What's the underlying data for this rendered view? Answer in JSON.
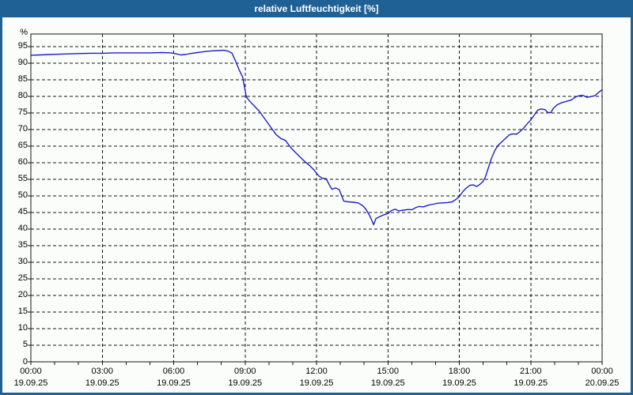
{
  "window": {
    "title": "relative Luftfeuchtigkeit [%]"
  },
  "colors": {
    "titlebar": "#1f6195",
    "frame": "#1f6195",
    "background": "#fbfdfb",
    "grid": "#141414",
    "line": "#1f1fc8",
    "title_text": "#ffffff",
    "label_text": "#000000"
  },
  "chart_data": {
    "type": "line",
    "title": "relative Luftfeuchtigkeit [%]",
    "xlabel": "",
    "ylabel": "%",
    "ylim": [
      0,
      98.8
    ],
    "xlim_hours": [
      0,
      24
    ],
    "grid": "dashed",
    "legend": "none",
    "y_ticks": [
      0,
      5,
      10,
      15,
      20,
      25,
      30,
      35,
      40,
      45,
      50,
      55,
      60,
      65,
      70,
      75,
      80,
      85,
      90,
      95
    ],
    "x_grid_hours": [
      3,
      6,
      9,
      12,
      15,
      18,
      21
    ],
    "x_minor_tick_hours": 1,
    "x_major_ticks": [
      {
        "hour": 0,
        "time": "00:00",
        "date": "19.09.25"
      },
      {
        "hour": 3,
        "time": "03:00",
        "date": "19.09.25"
      },
      {
        "hour": 6,
        "time": "06:00",
        "date": "19.09.25"
      },
      {
        "hour": 9,
        "time": "09:00",
        "date": "19.09.25"
      },
      {
        "hour": 12,
        "time": "12:00",
        "date": "19.09.25"
      },
      {
        "hour": 15,
        "time": "15:00",
        "date": "19.09.25"
      },
      {
        "hour": 18,
        "time": "18:00",
        "date": "19.09.25"
      },
      {
        "hour": 21,
        "time": "21:00",
        "date": "19.09.25"
      },
      {
        "hour": 24,
        "time": "00:00",
        "date": "20.09.25"
      }
    ],
    "series": [
      {
        "name": "relative Luftfeuchtigkeit",
        "unit": "%",
        "color": "#1f1fc8",
        "points": [
          [
            0,
            92.4
          ],
          [
            0.4,
            92.5
          ],
          [
            0.8,
            92.6
          ],
          [
            1.2,
            92.7
          ],
          [
            1.6,
            92.8
          ],
          [
            2,
            92.9
          ],
          [
            2.5,
            93
          ],
          [
            3,
            93
          ],
          [
            3.5,
            93.1
          ],
          [
            4,
            93.1
          ],
          [
            4.5,
            93.1
          ],
          [
            5,
            93.1
          ],
          [
            5.5,
            93.2
          ],
          [
            5.9,
            93.1
          ],
          [
            6.1,
            92.8
          ],
          [
            6.3,
            92.5
          ],
          [
            6.5,
            92.6
          ],
          [
            6.7,
            92.9
          ],
          [
            7,
            93.2
          ],
          [
            7.3,
            93.5
          ],
          [
            7.6,
            93.7
          ],
          [
            7.9,
            93.8
          ],
          [
            8.1,
            93.9
          ],
          [
            8.3,
            93.6
          ],
          [
            8.45,
            93
          ],
          [
            8.6,
            90.6
          ],
          [
            8.75,
            88
          ],
          [
            8.9,
            85.8
          ],
          [
            9.05,
            79.8
          ],
          [
            9.2,
            78.5
          ],
          [
            9.4,
            77
          ],
          [
            9.6,
            75.5
          ],
          [
            9.7,
            74.5
          ],
          [
            9.9,
            72.5
          ],
          [
            10.1,
            70.5
          ],
          [
            10.3,
            68.5
          ],
          [
            10.5,
            67.3
          ],
          [
            10.7,
            66.7
          ],
          [
            10.9,
            64.7
          ],
          [
            11.1,
            63.2
          ],
          [
            11.3,
            61.8
          ],
          [
            11.5,
            60.4
          ],
          [
            11.7,
            59.2
          ],
          [
            11.9,
            57.8
          ],
          [
            12,
            56.8
          ],
          [
            12.1,
            56
          ],
          [
            12.25,
            55.3
          ],
          [
            12.4,
            55.2
          ],
          [
            12.55,
            53.2
          ],
          [
            12.65,
            52
          ],
          [
            12.8,
            52.4
          ],
          [
            12.95,
            51.9
          ],
          [
            13.05,
            50.2
          ],
          [
            13.15,
            48.4
          ],
          [
            13.35,
            48.2
          ],
          [
            13.55,
            48.1
          ],
          [
            13.75,
            47.9
          ],
          [
            13.95,
            47
          ],
          [
            14.1,
            45.7
          ],
          [
            14.25,
            43.8
          ],
          [
            14.4,
            41.3
          ],
          [
            14.5,
            43.2
          ],
          [
            14.65,
            43.7
          ],
          [
            14.8,
            44.2
          ],
          [
            15,
            44.7
          ],
          [
            15.15,
            45.6
          ],
          [
            15.3,
            46
          ],
          [
            15.45,
            45.5
          ],
          [
            15.65,
            45.7
          ],
          [
            15.85,
            45.9
          ],
          [
            16,
            45.8
          ],
          [
            16.15,
            46.4
          ],
          [
            16.3,
            46.8
          ],
          [
            16.5,
            46.7
          ],
          [
            16.7,
            47.2
          ],
          [
            16.9,
            47.5
          ],
          [
            17.1,
            47.8
          ],
          [
            17.3,
            47.9
          ],
          [
            17.5,
            48
          ],
          [
            17.7,
            48.2
          ],
          [
            17.85,
            48.9
          ],
          [
            18,
            49.8
          ],
          [
            18.15,
            51.3
          ],
          [
            18.3,
            52.4
          ],
          [
            18.45,
            53.2
          ],
          [
            18.6,
            53.3
          ],
          [
            18.72,
            52.8
          ],
          [
            18.85,
            53.4
          ],
          [
            19,
            54.4
          ],
          [
            19.1,
            55.8
          ],
          [
            19.2,
            58
          ],
          [
            19.35,
            61.3
          ],
          [
            19.5,
            63.8
          ],
          [
            19.65,
            65.4
          ],
          [
            19.8,
            66.4
          ],
          [
            19.95,
            67.4
          ],
          [
            20.1,
            68.4
          ],
          [
            20.25,
            68.7
          ],
          [
            20.4,
            68.6
          ],
          [
            20.55,
            69.4
          ],
          [
            20.7,
            70.4
          ],
          [
            20.85,
            71.7
          ],
          [
            21,
            72.9
          ],
          [
            21.15,
            74.4
          ],
          [
            21.3,
            75.9
          ],
          [
            21.45,
            76.2
          ],
          [
            21.6,
            76
          ],
          [
            21.72,
            75.1
          ],
          [
            21.85,
            75.1
          ],
          [
            21.95,
            76.4
          ],
          [
            22.1,
            77.4
          ],
          [
            22.3,
            78.1
          ],
          [
            22.5,
            78.5
          ],
          [
            22.7,
            78.9
          ],
          [
            22.9,
            79.9
          ],
          [
            23.05,
            80.2
          ],
          [
            23.2,
            80.3
          ],
          [
            23.35,
            79.7
          ],
          [
            23.5,
            79.9
          ],
          [
            23.7,
            80.2
          ],
          [
            23.85,
            81.2
          ],
          [
            24,
            82
          ]
        ]
      }
    ]
  }
}
